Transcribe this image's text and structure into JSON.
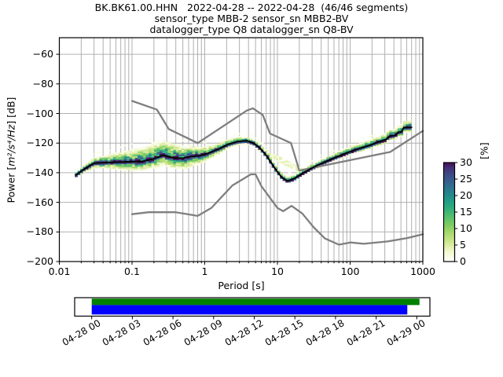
{
  "title": {
    "line1": "BK.BK61.00.HHN   2022-04-28 -- 2022-04-28  (46/46 segments)",
    "line2": "sensor_type MBB-2 sensor_sn MBB2-BV",
    "line3": "datalogger_type Q8 datalogger_sn Q8-BV"
  },
  "axes": {
    "xlabel": "Period [s]",
    "ylabel_prefix": "Power [",
    "ylabel_math": "m²/s⁴/Hz",
    "ylabel_suffix": "] [dB]",
    "xscale": "log",
    "xlim": [
      0.01,
      1000
    ],
    "ylim": [
      -200,
      -50
    ],
    "xtick_values": [
      0.01,
      0.1,
      1,
      10,
      100,
      1000
    ],
    "xtick_labels": [
      "0.01",
      "0.1",
      "1",
      "10",
      "100",
      "1000"
    ],
    "ytick_values": [
      -60,
      -80,
      -100,
      -120,
      -140,
      -160,
      -180,
      -200
    ],
    "ytick_labels": [
      "−60",
      "−80",
      "−100",
      "−120",
      "−140",
      "−160",
      "−180",
      "−200"
    ],
    "grid": true,
    "grid_color": "#b0b0b0"
  },
  "colorbar": {
    "label": "[%]",
    "tick_values": [
      0,
      5,
      10,
      15,
      20,
      25,
      30
    ],
    "tick_labels": [
      "0",
      "5",
      "10",
      "15",
      "20",
      "25",
      "30"
    ],
    "min": 0,
    "max": 30,
    "colormap_stops": [
      [
        0.0,
        "#ffffff"
      ],
      [
        0.1,
        "#f3f8cd"
      ],
      [
        0.17,
        "#d9ec9f"
      ],
      [
        0.27,
        "#b1dc6e"
      ],
      [
        0.37,
        "#7fcb5f"
      ],
      [
        0.47,
        "#4bbc70"
      ],
      [
        0.55,
        "#2bab7e"
      ],
      [
        0.63,
        "#219788"
      ],
      [
        0.7,
        "#27808e"
      ],
      [
        0.78,
        "#31688e"
      ],
      [
        0.85,
        "#3a538b"
      ],
      [
        0.92,
        "#433d80"
      ],
      [
        0.97,
        "#46246e"
      ],
      [
        1.0,
        "#440c54"
      ]
    ]
  },
  "timeline": {
    "tick_labels": [
      "04-28 00",
      "04-28 03",
      "04-28 06",
      "04-28 09",
      "04-28 12",
      "04-28 15",
      "04-28 18",
      "04-28 21",
      "04-29 00"
    ],
    "hours_span": 24,
    "bars": [
      {
        "name": "coverage-green",
        "color": "#008000",
        "start_hours": 0.0,
        "end_hours": 24.2,
        "row": "top"
      },
      {
        "name": "coverage-blue",
        "color": "#0000ff",
        "start_hours": 0.0,
        "end_hours": 23.3,
        "row": "bottom"
      }
    ]
  },
  "chart_data": {
    "type": "heatmap",
    "description": "ObsPy PPSD probabilistic power spectral density: 2-D histogram of PSD probability [%] vs period, with Peterson NHNM/NLNM noise models (grey) and mode line (black)",
    "x_axis": {
      "label": "Period [s]",
      "scale": "log",
      "range": [
        0.01,
        1000
      ]
    },
    "y_axis": {
      "label": "Power [m²/s⁴/Hz] [dB]",
      "range": [
        -200,
        -50
      ]
    },
    "color_axis": {
      "label": "[%]",
      "range": [
        0,
        30
      ]
    },
    "histogram": {
      "period_range": [
        0.017,
        720
      ],
      "period_step_octaves": 0.125,
      "db_bin_width": 1,
      "mode_line_period_db": [
        [
          0.017,
          -141.5
        ],
        [
          0.022,
          -137.5
        ],
        [
          0.03,
          -133.5
        ],
        [
          0.05,
          -133.0
        ],
        [
          0.09,
          -132.6
        ],
        [
          0.14,
          -132.3
        ],
        [
          0.2,
          -130.5
        ],
        [
          0.27,
          -128.2
        ],
        [
          0.38,
          -130.0
        ],
        [
          0.5,
          -130.2
        ],
        [
          0.65,
          -129.0
        ],
        [
          0.85,
          -128.6
        ],
        [
          1.1,
          -127.0
        ],
        [
          1.5,
          -124.3
        ],
        [
          2.1,
          -120.8
        ],
        [
          2.9,
          -118.8
        ],
        [
          3.8,
          -118.4
        ],
        [
          4.7,
          -120.0
        ],
        [
          5.8,
          -123.5
        ],
        [
          7.2,
          -129.0
        ],
        [
          9.2,
          -137.0
        ],
        [
          11.5,
          -143.2
        ],
        [
          13.8,
          -145.6
        ],
        [
          17,
          -144.0
        ],
        [
          21,
          -141.0
        ],
        [
          28,
          -137.5
        ],
        [
          40,
          -133.8
        ],
        [
          60,
          -130.0
        ],
        [
          90,
          -126.6
        ],
        [
          130,
          -123.8
        ],
        [
          190,
          -121.3
        ],
        [
          250,
          -119.0
        ],
        [
          310,
          -117.6
        ],
        [
          350,
          -115.2
        ],
        [
          420,
          -114.8
        ],
        [
          460,
          -112.6
        ],
        [
          510,
          -112.4
        ],
        [
          545,
          -109.6
        ],
        [
          700,
          -109.4
        ]
      ],
      "spread_above_db": [
        [
          0.017,
          2.5
        ],
        [
          0.03,
          5
        ],
        [
          0.06,
          8
        ],
        [
          0.1,
          11
        ],
        [
          0.2,
          13.5
        ],
        [
          0.35,
          13
        ],
        [
          0.6,
          10
        ],
        [
          1.0,
          7
        ],
        [
          2.0,
          4.5
        ],
        [
          3.6,
          3.5
        ],
        [
          5.5,
          4
        ],
        [
          9,
          4
        ],
        [
          14,
          3.5
        ],
        [
          22,
          3.5
        ],
        [
          45,
          4
        ],
        [
          100,
          4.5
        ],
        [
          200,
          5
        ],
        [
          400,
          6
        ],
        [
          700,
          6.5
        ]
      ],
      "spread_below_db": [
        [
          0.017,
          2.5
        ],
        [
          0.03,
          4.5
        ],
        [
          0.06,
          6.5
        ],
        [
          0.1,
          8
        ],
        [
          0.2,
          8.5
        ],
        [
          0.35,
          9.5
        ],
        [
          0.6,
          10
        ],
        [
          1.0,
          6.5
        ],
        [
          2.0,
          4
        ],
        [
          3.6,
          3
        ],
        [
          5.5,
          3
        ],
        [
          9,
          2.5
        ],
        [
          14,
          2.5
        ],
        [
          22,
          2.5
        ],
        [
          45,
          3
        ],
        [
          100,
          3
        ],
        [
          200,
          3.5
        ],
        [
          400,
          4
        ],
        [
          700,
          4.5
        ]
      ],
      "upper_tail_band": {
        "from": [
          5.5,
          -123.5
        ],
        "to": [
          26,
          -140.5
        ],
        "halfwidth_db": 1.8,
        "percent": 3
      }
    },
    "noise_models": {
      "color": "#7f7f7f",
      "nhnm_period_db": [
        [
          0.1,
          -91.5
        ],
        [
          0.22,
          -97.4
        ],
        [
          0.32,
          -110.5
        ],
        [
          0.8,
          -120.0
        ],
        [
          3.8,
          -98.0
        ],
        [
          4.6,
          -96.5
        ],
        [
          6.3,
          -101.0
        ],
        [
          7.9,
          -113.5
        ],
        [
          15.4,
          -120.0
        ],
        [
          20.0,
          -138.5
        ],
        [
          354.8,
          -126.0
        ],
        [
          1000,
          -111.8
        ]
      ],
      "nlnm_period_db": [
        [
          0.1,
          -168.0
        ],
        [
          0.17,
          -166.7
        ],
        [
          0.4,
          -166.7
        ],
        [
          0.8,
          -169.2
        ],
        [
          1.24,
          -163.7
        ],
        [
          2.4,
          -148.6
        ],
        [
          4.3,
          -141.1
        ],
        [
          5.0,
          -141.1
        ],
        [
          6.0,
          -149.0
        ],
        [
          10.0,
          -163.8
        ],
        [
          12.0,
          -166.0
        ],
        [
          15.6,
          -162.4
        ],
        [
          21.9,
          -167.5
        ],
        [
          31.6,
          -176.9
        ],
        [
          45.0,
          -184.4
        ],
        [
          70.0,
          -188.6
        ],
        [
          101.0,
          -187.1
        ],
        [
          154.0,
          -188.0
        ],
        [
          328.0,
          -186.4
        ],
        [
          600.0,
          -184.2
        ],
        [
          1000,
          -181.6
        ]
      ]
    },
    "mode_line_color": "#000000"
  }
}
